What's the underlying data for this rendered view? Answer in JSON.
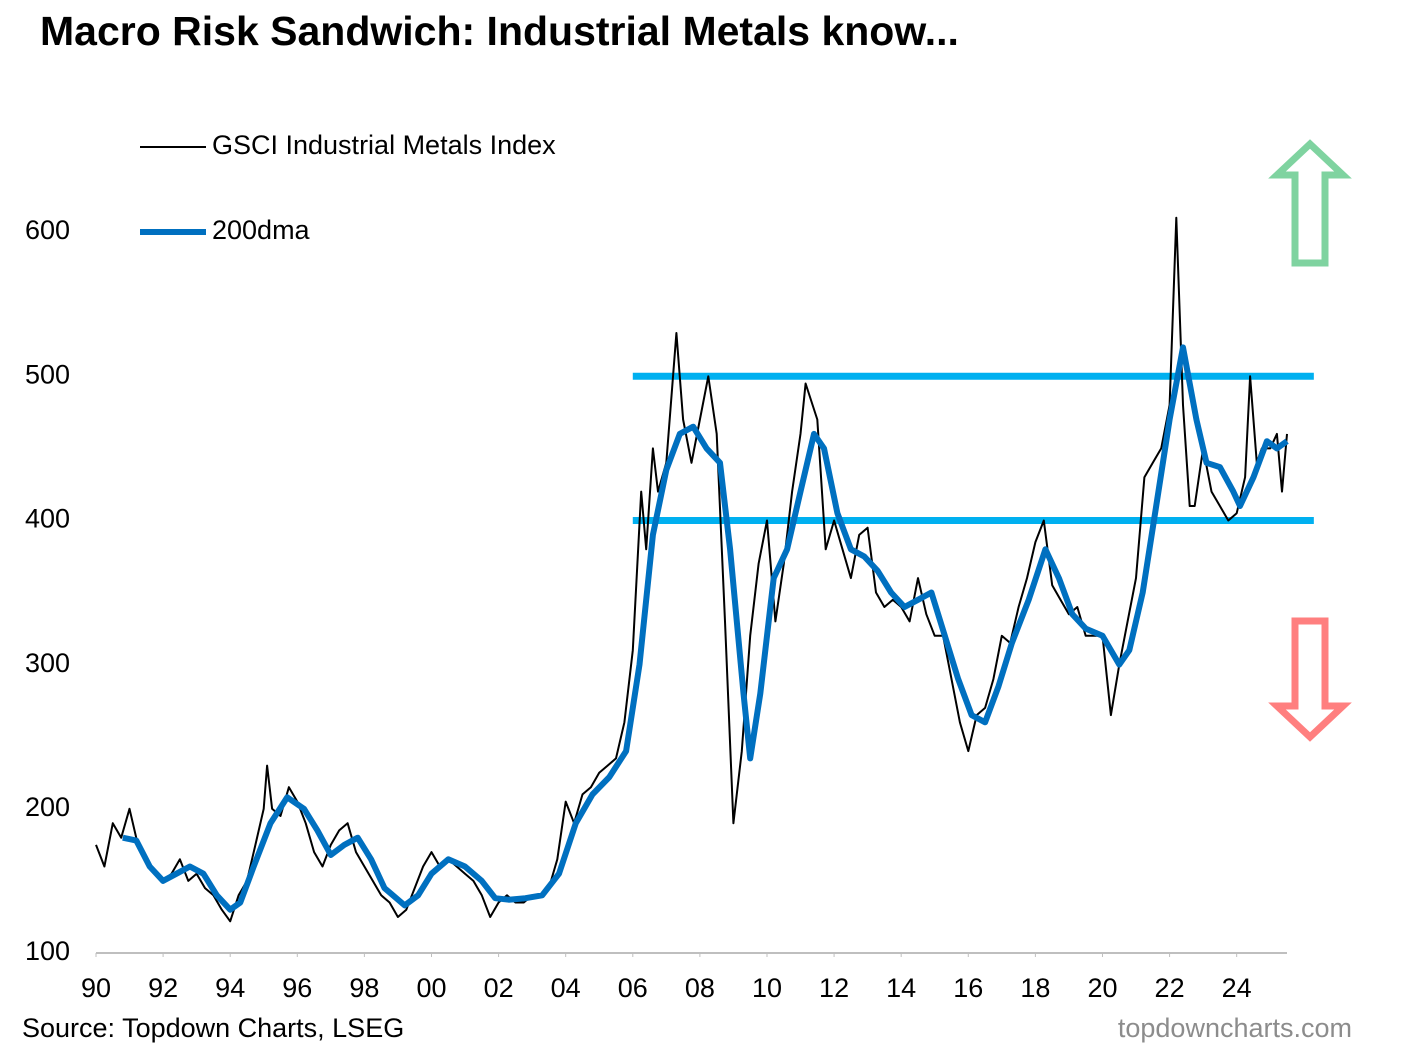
{
  "chart_data": {
    "type": "line",
    "title": "Macro Risk Sandwich: Industrial Metals know...",
    "source": "Source: Topdown Charts, LSEG",
    "watermark": "topdowncharts.com",
    "xlim": [
      1990,
      2025.5
    ],
    "ylim": [
      100,
      650
    ],
    "yticks": [
      100,
      200,
      300,
      400,
      500,
      600
    ],
    "xticks": [
      {
        "value": 1990,
        "label": "90"
      },
      {
        "value": 1992,
        "label": "92"
      },
      {
        "value": 1994,
        "label": "94"
      },
      {
        "value": 1996,
        "label": "96"
      },
      {
        "value": 1998,
        "label": "98"
      },
      {
        "value": 2000,
        "label": "00"
      },
      {
        "value": 2002,
        "label": "02"
      },
      {
        "value": 2004,
        "label": "04"
      },
      {
        "value": 2006,
        "label": "06"
      },
      {
        "value": 2008,
        "label": "08"
      },
      {
        "value": 2010,
        "label": "10"
      },
      {
        "value": 2012,
        "label": "12"
      },
      {
        "value": 2014,
        "label": "14"
      },
      {
        "value": 2016,
        "label": "16"
      },
      {
        "value": 2018,
        "label": "18"
      },
      {
        "value": 2020,
        "label": "20"
      },
      {
        "value": 2022,
        "label": "22"
      },
      {
        "value": 2024,
        "label": "24"
      }
    ],
    "grid": false,
    "legend": "top-left",
    "series": [
      {
        "name": "GSCI Industrial Metals Index",
        "color": "#000000",
        "x": [
          1990.0,
          1990.25,
          1990.5,
          1990.75,
          1991.0,
          1991.25,
          1991.5,
          1991.75,
          1992.0,
          1992.25,
          1992.5,
          1992.75,
          1993.0,
          1993.25,
          1993.5,
          1993.75,
          1994.0,
          1994.25,
          1994.5,
          1994.75,
          1995.0,
          1995.1,
          1995.25,
          1995.5,
          1995.75,
          1996.0,
          1996.25,
          1996.5,
          1996.75,
          1997.0,
          1997.25,
          1997.5,
          1997.75,
          1998.0,
          1998.25,
          1998.5,
          1998.75,
          1999.0,
          1999.25,
          1999.5,
          1999.75,
          2000.0,
          2000.25,
          2000.5,
          2000.75,
          2001.0,
          2001.25,
          2001.5,
          2001.75,
          2002.0,
          2002.25,
          2002.5,
          2002.75,
          2003.0,
          2003.25,
          2003.5,
          2003.75,
          2004.0,
          2004.25,
          2004.5,
          2004.75,
          2005.0,
          2005.25,
          2005.5,
          2005.75,
          2006.0,
          2006.25,
          2006.4,
          2006.6,
          2006.75,
          2007.0,
          2007.3,
          2007.5,
          2007.75,
          2008.0,
          2008.25,
          2008.5,
          2008.75,
          2009.0,
          2009.25,
          2009.5,
          2009.75,
          2010.0,
          2010.25,
          2010.5,
          2010.75,
          2011.0,
          2011.15,
          2011.5,
          2011.75,
          2012.0,
          2012.25,
          2012.5,
          2012.75,
          2013.0,
          2013.25,
          2013.5,
          2013.75,
          2014.0,
          2014.25,
          2014.5,
          2014.75,
          2015.0,
          2015.25,
          2015.5,
          2015.75,
          2016.0,
          2016.25,
          2016.5,
          2016.75,
          2017.0,
          2017.25,
          2017.5,
          2017.75,
          2018.0,
          2018.25,
          2018.5,
          2018.75,
          2019.0,
          2019.25,
          2019.5,
          2019.75,
          2020.0,
          2020.25,
          2020.5,
          2020.75,
          2021.0,
          2021.25,
          2021.5,
          2021.75,
          2022.0,
          2022.2,
          2022.4,
          2022.6,
          2022.75,
          2023.0,
          2023.25,
          2023.5,
          2023.75,
          2024.0,
          2024.25,
          2024.4,
          2024.6,
          2024.75,
          2025.0,
          2025.2,
          2025.35,
          2025.5
        ],
        "values": [
          175,
          160,
          190,
          180,
          200,
          175,
          165,
          155,
          150,
          155,
          165,
          150,
          155,
          145,
          140,
          130,
          122,
          140,
          150,
          175,
          200,
          230,
          200,
          195,
          215,
          205,
          190,
          170,
          160,
          175,
          185,
          190,
          170,
          160,
          150,
          140,
          135,
          125,
          130,
          145,
          160,
          170,
          160,
          165,
          160,
          155,
          150,
          140,
          125,
          135,
          140,
          135,
          135,
          140,
          140,
          145,
          165,
          205,
          190,
          210,
          215,
          225,
          230,
          235,
          260,
          310,
          420,
          380,
          450,
          420,
          440,
          530,
          470,
          440,
          470,
          500,
          460,
          330,
          190,
          240,
          320,
          370,
          400,
          330,
          370,
          420,
          460,
          495,
          470,
          380,
          400,
          380,
          360,
          390,
          395,
          350,
          340,
          345,
          340,
          330,
          360,
          335,
          320,
          320,
          290,
          260,
          240,
          265,
          270,
          290,
          320,
          315,
          340,
          360,
          385,
          400,
          355,
          345,
          335,
          340,
          320,
          320,
          320,
          265,
          300,
          330,
          360,
          430,
          440,
          450,
          480,
          610,
          480,
          410,
          410,
          450,
          420,
          410,
          400,
          405,
          430,
          500,
          440,
          450,
          450,
          460,
          420,
          460
        ]
      },
      {
        "name": "200dma",
        "color": "#0070c0",
        "x": [
          1990.8,
          1991.2,
          1991.6,
          1992.0,
          1992.4,
          1992.8,
          1993.2,
          1993.6,
          1994.0,
          1994.3,
          1994.7,
          1995.2,
          1995.7,
          1996.2,
          1996.6,
          1997.0,
          1997.4,
          1997.8,
          1998.2,
          1998.6,
          1999.2,
          1999.6,
          2000.0,
          2000.5,
          2001.0,
          2001.5,
          2001.9,
          2002.3,
          2002.8,
          2003.3,
          2003.8,
          2004.3,
          2004.8,
          2005.3,
          2005.8,
          2006.2,
          2006.6,
          2007.0,
          2007.4,
          2007.8,
          2008.2,
          2008.6,
          2008.9,
          2009.3,
          2009.5,
          2009.8,
          2010.2,
          2010.6,
          2011.0,
          2011.4,
          2011.7,
          2012.1,
          2012.5,
          2012.9,
          2013.3,
          2013.7,
          2014.1,
          2014.5,
          2014.9,
          2015.3,
          2015.7,
          2016.1,
          2016.5,
          2016.9,
          2017.3,
          2017.8,
          2018.3,
          2018.7,
          2019.1,
          2019.5,
          2020.0,
          2020.5,
          2020.8,
          2021.2,
          2021.6,
          2022.0,
          2022.4,
          2022.8,
          2023.1,
          2023.5,
          2023.9,
          2024.1,
          2024.5,
          2024.9,
          2025.2,
          2025.5
        ],
        "values": [
          180,
          178,
          160,
          150,
          155,
          160,
          155,
          140,
          130,
          135,
          160,
          190,
          208,
          200,
          185,
          168,
          175,
          180,
          165,
          145,
          133,
          140,
          155,
          165,
          160,
          150,
          138,
          137,
          138,
          140,
          155,
          190,
          210,
          222,
          240,
          300,
          390,
          435,
          460,
          465,
          450,
          440,
          380,
          280,
          235,
          280,
          360,
          380,
          420,
          460,
          450,
          405,
          380,
          375,
          365,
          350,
          340,
          345,
          350,
          320,
          290,
          265,
          260,
          285,
          315,
          345,
          380,
          360,
          335,
          325,
          320,
          300,
          310,
          350,
          410,
          470,
          520,
          470,
          440,
          437,
          420,
          410,
          430,
          455,
          450,
          455
        ]
      }
    ],
    "reference_lines": [
      {
        "value": 500,
        "x": [
          2006,
          2026.3
        ],
        "color": "#00b0f0"
      },
      {
        "value": 400,
        "x": [
          2006,
          2026.3
        ],
        "color": "#00b0f0"
      }
    ]
  }
}
